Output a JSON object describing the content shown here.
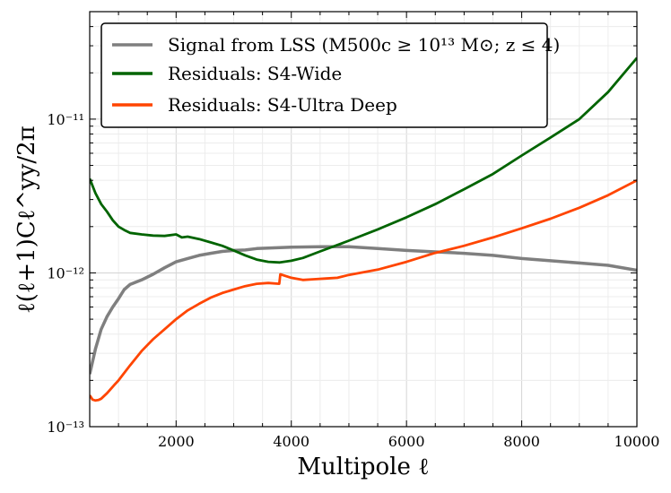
{
  "chart_data": {
    "type": "line",
    "title": "",
    "xlabel": "Multipole ℓ",
    "ylabel": "ℓ(ℓ+1)Cℓ^yy/2π",
    "xlim": [
      500,
      10000
    ],
    "ylim": [
      1e-13,
      5e-11
    ],
    "yscale": "log",
    "grid": true,
    "legend_position": "top-left",
    "x_ticks": [
      2000,
      4000,
      6000,
      8000,
      10000
    ],
    "x_tick_labels": [
      "2000",
      "4000",
      "6000",
      "8000",
      "10000"
    ],
    "y_ticks": [
      1e-13,
      1e-12,
      1e-11
    ],
    "y_tick_labels": [
      "10⁻¹³",
      "10⁻¹²",
      "10⁻¹¹"
    ],
    "series": [
      {
        "name": "Signal from LSS (M500c ≥ 10¹³ M⊙; z ≤ 4)",
        "color": "#7f7f7f",
        "x": [
          500,
          600,
          700,
          800,
          900,
          1000,
          1100,
          1200,
          1400,
          1600,
          1800,
          2000,
          2200,
          2400,
          2600,
          2800,
          3000,
          3200,
          3400,
          3600,
          3800,
          4000,
          4500,
          5000,
          5500,
          6000,
          6500,
          7000,
          7500,
          8000,
          8500,
          9000,
          9500,
          10000
        ],
        "values": [
          2.2e-13,
          3.2e-13,
          4.3e-13,
          5.2e-13,
          6e-13,
          6.8e-13,
          7.8e-13,
          8.4e-13,
          9e-13,
          9.8e-13,
          1.08e-12,
          1.18e-12,
          1.24e-12,
          1.3e-12,
          1.34e-12,
          1.38e-12,
          1.4e-12,
          1.41e-12,
          1.44e-12,
          1.45e-12,
          1.46e-12,
          1.47e-12,
          1.48e-12,
          1.48e-12,
          1.44e-12,
          1.4e-12,
          1.37e-12,
          1.34e-12,
          1.3e-12,
          1.24e-12,
          1.2e-12,
          1.16e-12,
          1.12e-12,
          1.04e-12
        ]
      },
      {
        "name": "Residuals: S4-Wide",
        "color": "#006400",
        "x": [
          500,
          600,
          700,
          800,
          900,
          1000,
          1100,
          1200,
          1400,
          1600,
          1800,
          2000,
          2100,
          2200,
          2400,
          2600,
          2800,
          3000,
          3200,
          3400,
          3600,
          3800,
          4000,
          4200,
          4500,
          5000,
          5500,
          6000,
          6500,
          7000,
          7500,
          8000,
          8500,
          9000,
          9500,
          10000
        ],
        "values": [
          4.1e-12,
          3.3e-12,
          2.8e-12,
          2.5e-12,
          2.2e-12,
          2e-12,
          1.9e-12,
          1.82e-12,
          1.78e-12,
          1.75e-12,
          1.74e-12,
          1.78e-12,
          1.7e-12,
          1.72e-12,
          1.66e-12,
          1.58e-12,
          1.5e-12,
          1.4e-12,
          1.3e-12,
          1.22e-12,
          1.18e-12,
          1.17e-12,
          1.2e-12,
          1.25e-12,
          1.38e-12,
          1.62e-12,
          1.92e-12,
          2.3e-12,
          2.8e-12,
          3.5e-12,
          4.4e-12,
          5.8e-12,
          7.6e-12,
          1e-11,
          1.5e-11,
          2.5e-11
        ]
      },
      {
        "name": "Residuals: S4-Ultra Deep",
        "color": "#ff4500",
        "x": [
          500,
          550,
          600,
          650,
          700,
          800,
          900,
          1000,
          1200,
          1400,
          1600,
          1800,
          2000,
          2200,
          2400,
          2600,
          2800,
          3000,
          3200,
          3400,
          3600,
          3790,
          3810,
          4000,
          4200,
          4400,
          4600,
          4800,
          5000,
          5500,
          6000,
          6500,
          7000,
          7500,
          8000,
          8500,
          9000,
          9500,
          10000
        ],
        "values": [
          1.6e-13,
          1.5e-13,
          1.48e-13,
          1.49e-13,
          1.52e-13,
          1.65e-13,
          1.82e-13,
          2e-13,
          2.5e-13,
          3.1e-13,
          3.7e-13,
          4.3e-13,
          5e-13,
          5.7e-13,
          6.3e-13,
          6.9e-13,
          7.4e-13,
          7.8e-13,
          8.2e-13,
          8.5e-13,
          8.6e-13,
          8.5e-13,
          9.8e-13,
          9.3e-13,
          9e-13,
          9.1e-13,
          9.2e-13,
          9.3e-13,
          9.7e-13,
          1.05e-12,
          1.18e-12,
          1.35e-12,
          1.5e-12,
          1.7e-12,
          1.95e-12,
          2.25e-12,
          2.65e-12,
          3.2e-12,
          4e-12
        ]
      }
    ]
  }
}
